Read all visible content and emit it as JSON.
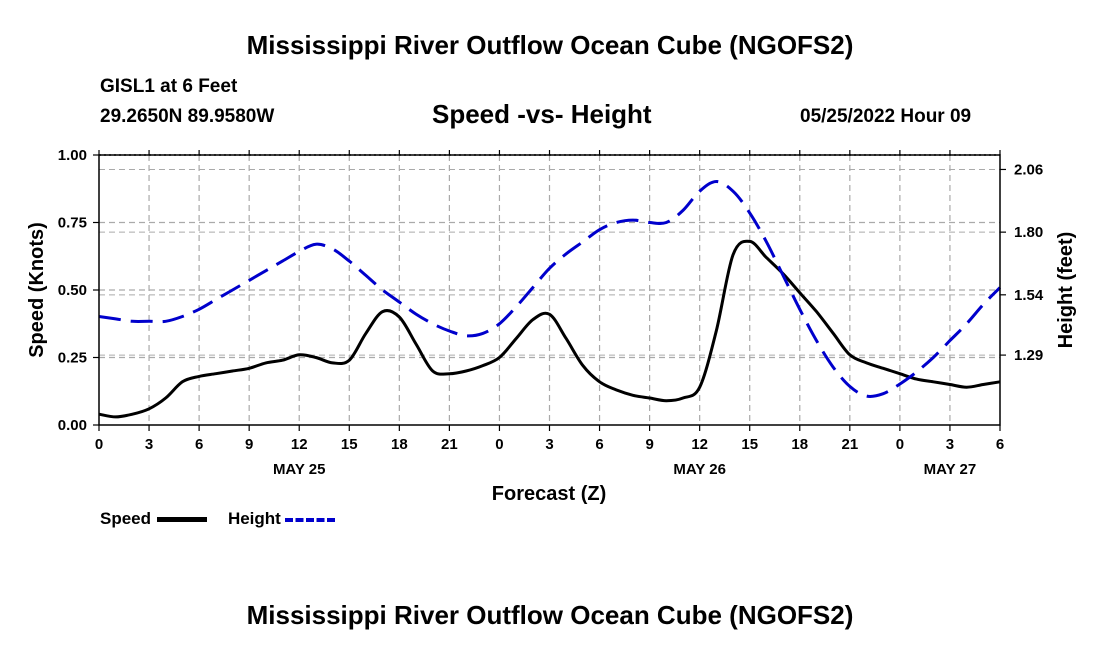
{
  "header": {
    "main_title": "Mississippi River Outflow Ocean Cube (NGOFS2)",
    "station_line": "GISL1 at 6 Feet",
    "coords_line": "29.2650N  89.9580W",
    "chart_subtitle": "Speed -vs- Height",
    "datetime": "05/25/2022 Hour 09"
  },
  "footer": {
    "repeat_title": "Mississippi River Outflow Ocean Cube (NGOFS2)"
  },
  "legend": {
    "speed_label": "Speed",
    "height_label": "Height"
  },
  "colors": {
    "speed": "#000000",
    "height": "#0000cc",
    "grid": "#aaaaaa"
  },
  "chart_data": {
    "type": "line",
    "title": "Speed -vs- Height",
    "xlabel": "Forecast (Z)",
    "ylabel": "Speed (Knots)",
    "y2label": "Height (feet)",
    "xlim": [
      0,
      54
    ],
    "ylim": [
      0,
      1.0
    ],
    "y2lim": [
      1.0,
      2.12
    ],
    "grid": true,
    "legend_position": "bottom-left",
    "x_ticks": [
      0,
      3,
      6,
      9,
      12,
      15,
      18,
      21,
      24,
      27,
      30,
      33,
      36,
      39,
      42,
      45,
      48,
      51,
      54
    ],
    "x_tick_labels": [
      "0",
      "3",
      "6",
      "9",
      "12",
      "15",
      "18",
      "21",
      "0",
      "3",
      "6",
      "9",
      "12",
      "15",
      "18",
      "21",
      "0",
      "3",
      "6"
    ],
    "date_labels": [
      {
        "x": 12,
        "label": "MAY 25"
      },
      {
        "x": 36,
        "label": "MAY 26"
      },
      {
        "x": 51,
        "label": "MAY 27"
      }
    ],
    "y_ticks": [
      0.0,
      0.25,
      0.5,
      0.75,
      1.0
    ],
    "y_tick_labels": [
      "0.00",
      "0.25",
      "0.50",
      "0.75",
      "1.00"
    ],
    "y2_ticks": [
      1.29,
      1.54,
      1.8,
      2.06
    ],
    "y2_tick_labels": [
      "1.29",
      "1.54",
      "1.80",
      "2.06"
    ],
    "series": [
      {
        "name": "Speed",
        "axis": "left",
        "style": "solid",
        "x": [
          0,
          1,
          2,
          3,
          4,
          5,
          6,
          7,
          8,
          9,
          10,
          11,
          12,
          13,
          14,
          15,
          16,
          17,
          18,
          19,
          20,
          21,
          22,
          23,
          24,
          25,
          26,
          27,
          28,
          29,
          30,
          31,
          32,
          33,
          34,
          35,
          36,
          37,
          38,
          39,
          40,
          41,
          42,
          43,
          44,
          45,
          46,
          47,
          48,
          49,
          50,
          51,
          52,
          53,
          54
        ],
        "values": [
          0.04,
          0.03,
          0.04,
          0.06,
          0.1,
          0.16,
          0.18,
          0.19,
          0.2,
          0.21,
          0.23,
          0.24,
          0.26,
          0.25,
          0.23,
          0.24,
          0.34,
          0.42,
          0.4,
          0.3,
          0.2,
          0.19,
          0.2,
          0.22,
          0.25,
          0.32,
          0.39,
          0.41,
          0.32,
          0.22,
          0.16,
          0.13,
          0.11,
          0.1,
          0.09,
          0.1,
          0.14,
          0.35,
          0.63,
          0.68,
          0.62,
          0.56,
          0.49,
          0.42,
          0.34,
          0.26,
          0.23,
          0.21,
          0.19,
          0.17,
          0.16,
          0.15,
          0.14,
          0.15,
          0.16
        ]
      },
      {
        "name": "Height",
        "axis": "right",
        "style": "dashed",
        "x": [
          0,
          1,
          2,
          3,
          4,
          5,
          6,
          7,
          8,
          9,
          10,
          11,
          12,
          13,
          14,
          15,
          16,
          17,
          18,
          19,
          20,
          21,
          22,
          23,
          24,
          25,
          26,
          27,
          28,
          29,
          30,
          31,
          32,
          33,
          34,
          35,
          36,
          37,
          38,
          39,
          40,
          41,
          42,
          43,
          44,
          45,
          46,
          47,
          48,
          49,
          50,
          51,
          52,
          53,
          54
        ],
        "values": [
          1.45,
          1.44,
          1.43,
          1.43,
          1.43,
          1.45,
          1.48,
          1.52,
          1.56,
          1.6,
          1.64,
          1.68,
          1.72,
          1.75,
          1.73,
          1.68,
          1.62,
          1.56,
          1.51,
          1.46,
          1.42,
          1.39,
          1.37,
          1.38,
          1.42,
          1.49,
          1.57,
          1.65,
          1.71,
          1.76,
          1.81,
          1.84,
          1.85,
          1.84,
          1.84,
          1.89,
          1.97,
          2.01,
          1.97,
          1.88,
          1.76,
          1.62,
          1.48,
          1.35,
          1.24,
          1.16,
          1.12,
          1.13,
          1.17,
          1.22,
          1.28,
          1.35,
          1.42,
          1.5,
          1.57
        ]
      }
    ]
  }
}
